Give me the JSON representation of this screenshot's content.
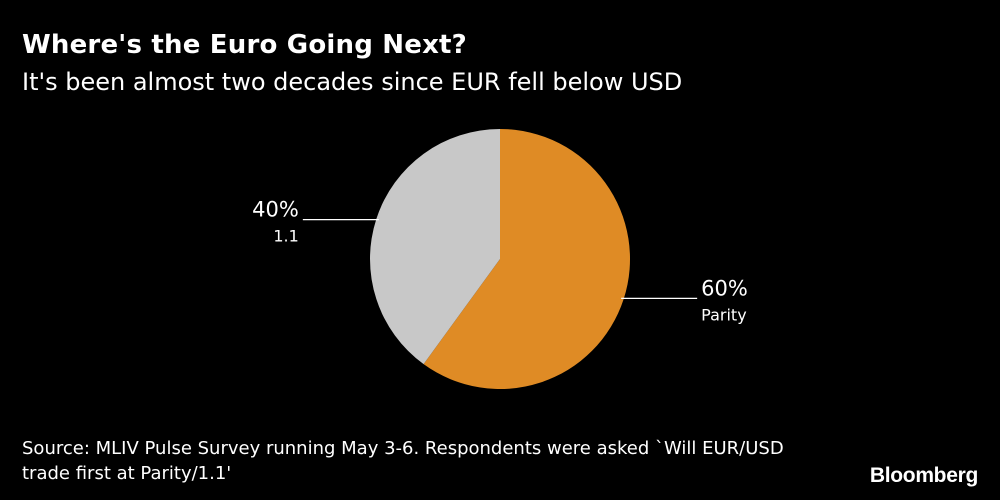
{
  "colors": {
    "background": "#000000",
    "text": "#ffffff",
    "leader_line": "#ffffff"
  },
  "chart_data": {
    "type": "pie",
    "title": "Where's the Euro Going Next?",
    "subtitle": "It's been almost two decades since EUR fell below USD",
    "start_angle_deg": 0,
    "direction": "clockwise",
    "slices": [
      {
        "label": "Parity",
        "value": 60,
        "value_label": "60%",
        "color": "#df8b25"
      },
      {
        "label": "1.1",
        "value": 40,
        "value_label": "40%",
        "color": "#c8c8c8"
      }
    ]
  },
  "footer": {
    "source": "Source: MLIV Pulse Survey running May 3-6. Respondents were asked `Will EUR/USD trade first at Parity/1.1'",
    "brand": "Bloomberg"
  }
}
